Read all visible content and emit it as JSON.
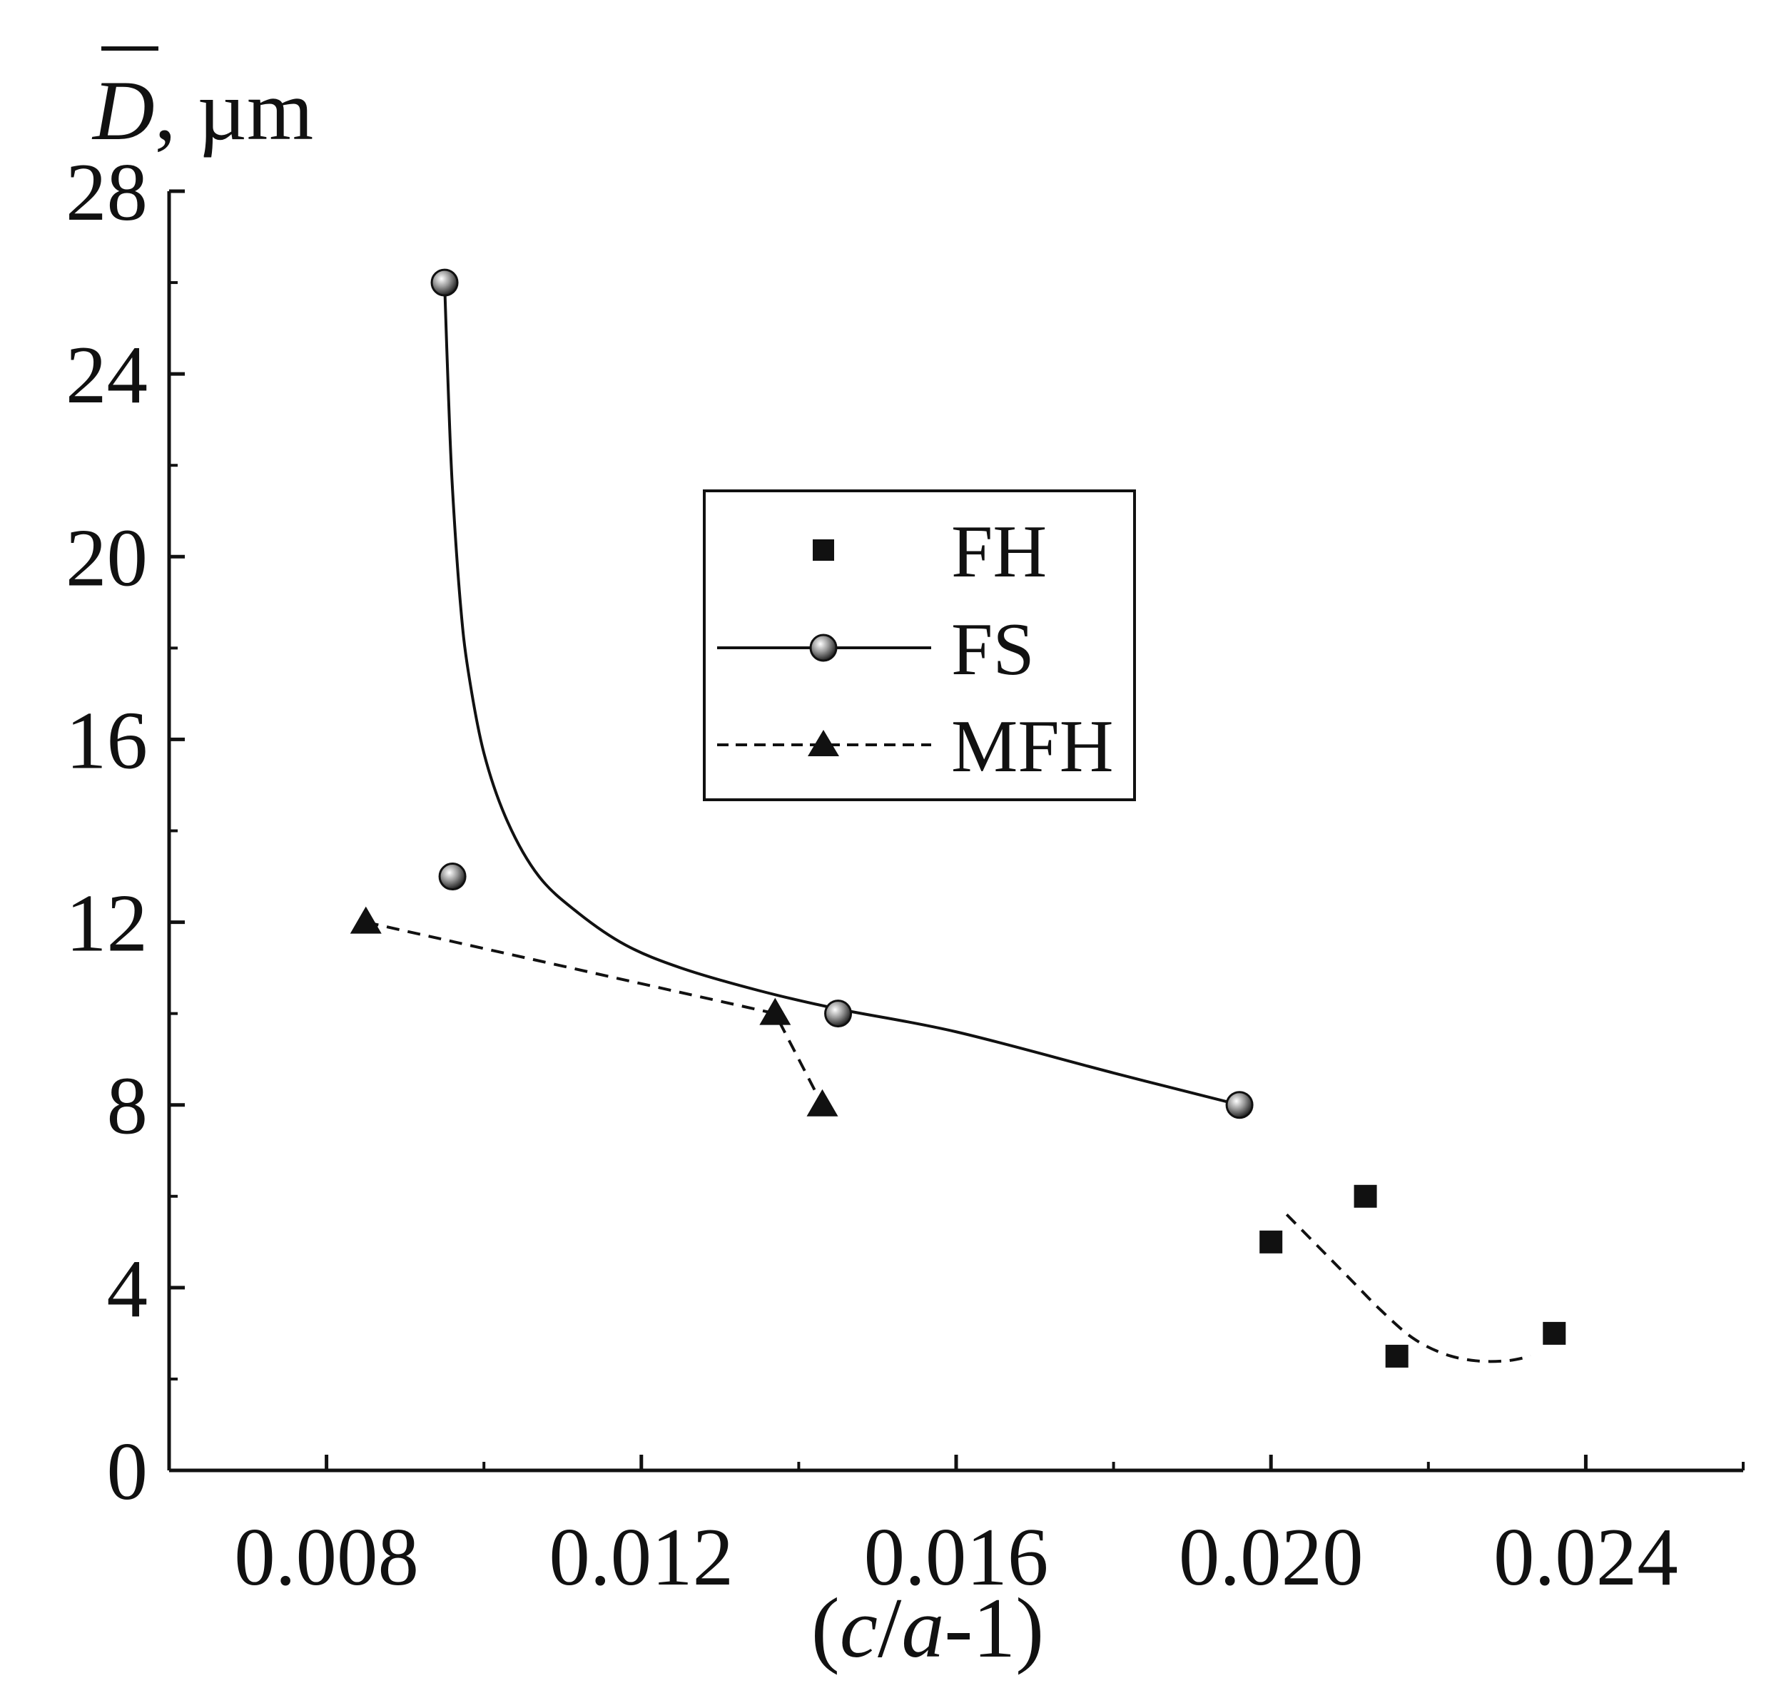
{
  "chart_data": {
    "type": "scatter",
    "title": "",
    "ylabel_symbol": "D",
    "ylabel_unit": ", µm",
    "xlabel_parts": [
      "(",
      "c",
      "/",
      "a",
      "-1)"
    ],
    "xlim": [
      0.006,
      0.026
    ],
    "ylim": [
      0,
      28
    ],
    "xticks": [
      0.008,
      0.012,
      0.016,
      0.02,
      0.024
    ],
    "xtick_labels": [
      "0.008",
      "0.012",
      "0.016",
      "0.020",
      "0.024"
    ],
    "yticks": [
      0,
      4,
      8,
      12,
      16,
      20,
      24,
      28
    ],
    "ytick_labels": [
      "0",
      "4",
      "8",
      "12",
      "16",
      "20",
      "24",
      "28"
    ],
    "legend_position": "center",
    "series": [
      {
        "name": "FH",
        "marker": "square",
        "line": "none",
        "x": [
          0.02,
          0.0212,
          0.0216,
          0.0236
        ],
        "y": [
          5.0,
          6.0,
          2.5,
          3.0
        ],
        "fit": {
          "style": "dashed",
          "x": [
            0.0202,
            0.0206,
            0.021,
            0.0214,
            0.0218,
            0.0222,
            0.0226,
            0.023,
            0.0233
          ],
          "y": [
            5.6,
            4.9,
            4.2,
            3.5,
            2.9,
            2.55,
            2.4,
            2.4,
            2.5
          ]
        }
      },
      {
        "name": "FS",
        "marker": "circle",
        "line": "solid",
        "x": [
          0.0095,
          0.0096,
          0.0145,
          0.0196
        ],
        "y": [
          26.0,
          13.0,
          10.0,
          8.0
        ],
        "fit": {
          "style": "solid",
          "x": [
            0.0095,
            0.00955,
            0.0096,
            0.0097,
            0.0098,
            0.01,
            0.0103,
            0.0107,
            0.0112,
            0.0118,
            0.0125,
            0.0135,
            0.0145,
            0.016,
            0.018,
            0.0196
          ],
          "y": [
            26.0,
            23.5,
            21.5,
            19.0,
            17.5,
            15.7,
            14.2,
            13.0,
            12.2,
            11.5,
            11.0,
            10.5,
            10.1,
            9.6,
            8.7,
            8.0
          ]
        }
      },
      {
        "name": "MFH",
        "marker": "triangle",
        "line": "dashed",
        "x": [
          0.0085,
          0.0137,
          0.0143
        ],
        "y": [
          12.0,
          10.0,
          8.0
        ],
        "fit": {
          "style": "dashed",
          "x": [
            0.0085,
            0.0137,
            0.0143
          ],
          "y": [
            12.0,
            10.0,
            8.0
          ]
        }
      }
    ]
  }
}
